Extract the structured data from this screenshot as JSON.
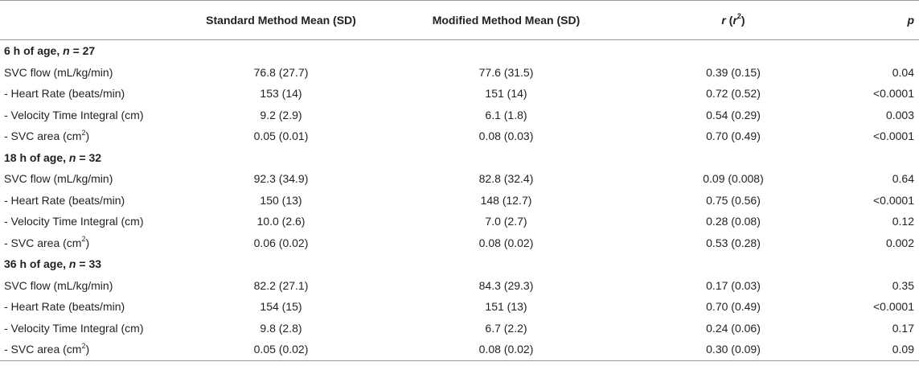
{
  "header": {
    "label_col": "",
    "std_col": "Standard Method Mean (SD)",
    "mod_col": "Modified Method Mean (SD)",
    "r_col_r": "r",
    "r_col_open": " (",
    "r_col_r2": "r",
    "r_col_sup": "2",
    "r_col_close": ")",
    "p_col": "p"
  },
  "groups": [
    {
      "title_prefix": "6 h of age, ",
      "title_n": "n",
      "title_suffix": " = 27",
      "rows": [
        {
          "label": "SVC flow (mL/kg/min)",
          "label_sup": "",
          "label_after": "",
          "std": "76.8 (27.7)",
          "mod": "77.6 (31.5)",
          "r": "0.39 (0.15)",
          "p": "0.04"
        },
        {
          "label": "- Heart Rate (beats/min)",
          "label_sup": "",
          "label_after": "",
          "std": "153 (14)",
          "mod": "151 (14)",
          "r": "0.72 (0.52)",
          "p": "<0.0001"
        },
        {
          "label": "- Velocity Time Integral (cm)",
          "label_sup": "",
          "label_after": "",
          "std": "9.2 (2.9)",
          "mod": "6.1 (1.8)",
          "r": "0.54 (0.29)",
          "p": "0.003"
        },
        {
          "label": "- SVC area (cm",
          "label_sup": "2",
          "label_after": ")",
          "std": "0.05 (0.01)",
          "mod": "0.08 (0.03)",
          "r": "0.70 (0.49)",
          "p": "<0.0001"
        }
      ]
    },
    {
      "title_prefix": "18 h of age, ",
      "title_n": "n",
      "title_suffix": " = 32",
      "rows": [
        {
          "label": "SVC flow (mL/kg/min)",
          "label_sup": "",
          "label_after": "",
          "std": "92.3 (34.9)",
          "mod": "82.8 (32.4)",
          "r": "0.09 (0.008)",
          "p": "0.64"
        },
        {
          "label": "- Heart Rate (beats/min)",
          "label_sup": "",
          "label_after": "",
          "std": "150 (13)",
          "mod": "148 (12.7)",
          "r": "0.75 (0.56)",
          "p": "<0.0001"
        },
        {
          "label": "- Velocity Time Integral (cm)",
          "label_sup": "",
          "label_after": "",
          "std": "10.0 (2.6)",
          "mod": "7.0 (2.7)",
          "r": "0.28 (0.08)",
          "p": "0.12"
        },
        {
          "label": "- SVC area (cm",
          "label_sup": "2",
          "label_after": ")",
          "std": "0.06 (0.02)",
          "mod": "0.08 (0.02)",
          "r": "0.53 (0.28)",
          "p": "0.002"
        }
      ]
    },
    {
      "title_prefix": "36 h of age, ",
      "title_n": "n",
      "title_suffix": " = 33",
      "rows": [
        {
          "label": "SVC flow (mL/kg/min)",
          "label_sup": "",
          "label_after": "",
          "std": "82.2 (27.1)",
          "mod": "84.3 (29.3)",
          "r": "0.17 (0.03)",
          "p": "0.35"
        },
        {
          "label": "- Heart Rate (beats/min)",
          "label_sup": "",
          "label_after": "",
          "std": "154 (15)",
          "mod": "151 (13)",
          "r": "0.70 (0.49)",
          "p": "<0.0001"
        },
        {
          "label": "- Velocity Time Integral (cm)",
          "label_sup": "",
          "label_after": "",
          "std": "9.8 (2.8)",
          "mod": "6.7 (2.2)",
          "r": "0.24 (0.06)",
          "p": "0.17"
        },
        {
          "label": "- SVC area (cm",
          "label_sup": "2",
          "label_after": ")",
          "std": "0.05 (0.02)",
          "mod": "0.08 (0.02)",
          "r": "0.30 (0.09)",
          "p": "0.09"
        }
      ]
    }
  ]
}
